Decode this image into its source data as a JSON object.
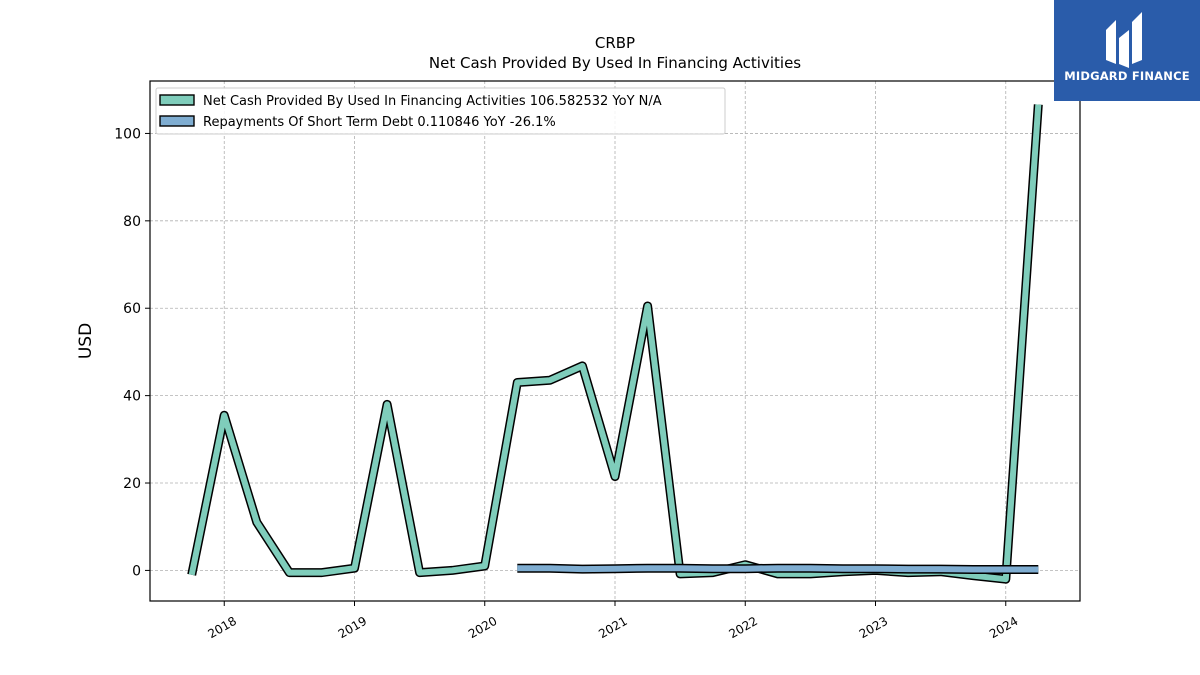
{
  "brand": {
    "name": "MIDGARD FINANCE",
    "bg_color": "#2a5caa"
  },
  "chart_data": {
    "type": "line",
    "title": "CRBP",
    "subtitle": "Net Cash Provided By Used In Financing Activities",
    "ylabel": "USD",
    "xlabel": "",
    "ylim": [
      -7,
      112
    ],
    "xlim": [
      2017.43,
      2024.57
    ],
    "yticks": [
      0,
      20,
      40,
      60,
      80,
      100
    ],
    "xticks": [
      2018,
      2019,
      2020,
      2021,
      2022,
      2023,
      2024
    ],
    "grid": true,
    "legend_position": "top-left",
    "series": [
      {
        "name": "Net Cash Provided By Used In Financing Activities",
        "legend_label": "Net Cash Provided By Used In Financing Activities  106.582532 YoY N/A",
        "color": "#7fcdbb",
        "x": [
          2017.75,
          2018.0,
          2018.25,
          2018.5,
          2018.75,
          2019.0,
          2019.25,
          2019.5,
          2019.75,
          2020.0,
          2020.25,
          2020.5,
          2020.75,
          2021.0,
          2021.25,
          2021.5,
          2021.75,
          2022.0,
          2022.25,
          2022.5,
          2022.75,
          2023.0,
          2023.25,
          2023.5,
          2023.75,
          2024.0,
          2024.25
        ],
        "y": [
          -1.0,
          35.5,
          11.0,
          -0.5,
          -0.5,
          0.5,
          38.0,
          -0.5,
          0.0,
          1.0,
          43.0,
          43.5,
          46.8,
          21.5,
          60.5,
          -0.8,
          -0.5,
          1.3,
          -0.8,
          -0.8,
          -0.3,
          0.0,
          -0.5,
          -0.3,
          -1.2,
          -2.0,
          106.6
        ]
      },
      {
        "name": "Repayments Of Short Term Debt",
        "legend_label": "Repayments Of Short Term Debt  0.110846 YoY -26.1%",
        "color": "#7fadd1",
        "x": [
          2020.25,
          2020.5,
          2020.75,
          2021.0,
          2021.25,
          2021.5,
          2021.75,
          2022.0,
          2022.25,
          2022.5,
          2022.75,
          2023.0,
          2023.25,
          2023.5,
          2023.75,
          2024.0,
          2024.25
        ],
        "y": [
          0.5,
          0.5,
          0.3,
          0.4,
          0.5,
          0.5,
          0.4,
          0.4,
          0.5,
          0.5,
          0.4,
          0.4,
          0.3,
          0.3,
          0.2,
          0.2,
          0.2
        ]
      }
    ]
  }
}
